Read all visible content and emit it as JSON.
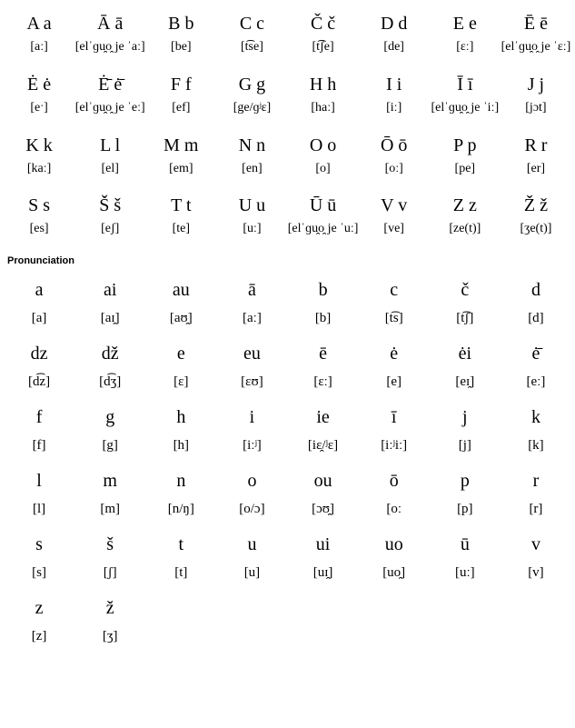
{
  "alphabet": [
    {
      "letter": "A a",
      "ipa": "[aː]"
    },
    {
      "letter": "Ā ā",
      "ipa": "[elˈɡu̯o̯ je ˈaː]"
    },
    {
      "letter": "B b",
      "ipa": "[be]"
    },
    {
      "letter": "C c",
      "ipa": "[t͡se]"
    },
    {
      "letter": "Č č",
      "ipa": "[t͡ʃe]"
    },
    {
      "letter": "D d",
      "ipa": "[de]"
    },
    {
      "letter": "E e",
      "ipa": "[ɛː]"
    },
    {
      "letter": "Ē ē",
      "ipa": "[elˈɡu̯o̯ je ˈɛː]"
    },
    {
      "letter": "Ė ė",
      "ipa": "[eˑ]"
    },
    {
      "letter": "Ė̄ ė̄",
      "ipa": "[elˈɡu̯o̯ je ˈeː]"
    },
    {
      "letter": "F f",
      "ipa": "[ef]"
    },
    {
      "letter": "G g",
      "ipa": "[ge/ɡʲɛ]"
    },
    {
      "letter": "H h",
      "ipa": "[haː]"
    },
    {
      "letter": "I i",
      "ipa": "[iː]"
    },
    {
      "letter": "Ī ī",
      "ipa": "[elˈɡu̯o̯ je ˈiː]"
    },
    {
      "letter": "J j",
      "ipa": "[jɔt]"
    },
    {
      "letter": "K k",
      "ipa": "[kaː]"
    },
    {
      "letter": "L l",
      "ipa": "[el]"
    },
    {
      "letter": "M m",
      "ipa": "[em]"
    },
    {
      "letter": "N n",
      "ipa": "[en]"
    },
    {
      "letter": "O o",
      "ipa": "[o]"
    },
    {
      "letter": "Ō ō",
      "ipa": "[oː]"
    },
    {
      "letter": "P p",
      "ipa": "[pe]"
    },
    {
      "letter": "R r",
      "ipa": "[er]"
    },
    {
      "letter": "S s",
      "ipa": "[es]"
    },
    {
      "letter": "Š š",
      "ipa": "[eʃ]"
    },
    {
      "letter": "T t",
      "ipa": "[te]"
    },
    {
      "letter": "U u",
      "ipa": "[uː]"
    },
    {
      "letter": "Ū ū",
      "ipa": "[elˈɡu̯o̯ je ˈuː]"
    },
    {
      "letter": "V v",
      "ipa": "[ve]"
    },
    {
      "letter": "Z z",
      "ipa": "[ze(t)]"
    },
    {
      "letter": "Ž ž",
      "ipa": "[ʒe(t)]"
    }
  ],
  "section_title": "Pronunciation",
  "pronunciation": [
    {
      "letter": "a",
      "ipa": "[a]"
    },
    {
      "letter": "ai",
      "ipa": "[aɪ̯]"
    },
    {
      "letter": "au",
      "ipa": "[aʊ̯]"
    },
    {
      "letter": "ā",
      "ipa": "[aː]"
    },
    {
      "letter": "b",
      "ipa": "[b]"
    },
    {
      "letter": "c",
      "ipa": "[t͡s]"
    },
    {
      "letter": "č",
      "ipa": "[t͡ʃ]"
    },
    {
      "letter": "d",
      "ipa": "[d]"
    },
    {
      "letter": "dz",
      "ipa": "[d͡z]"
    },
    {
      "letter": "dž",
      "ipa": "[d͡ʒ]"
    },
    {
      "letter": "e",
      "ipa": "[ɛ]"
    },
    {
      "letter": "eu",
      "ipa": "[ɛʊ]"
    },
    {
      "letter": "ē",
      "ipa": "[ɛː]"
    },
    {
      "letter": "ė",
      "ipa": "[e]"
    },
    {
      "letter": "ėi",
      "ipa": "[eɪ̯]"
    },
    {
      "letter": "ė̄",
      "ipa": "[eː]"
    },
    {
      "letter": "f",
      "ipa": "[f]"
    },
    {
      "letter": "g",
      "ipa": "[g]"
    },
    {
      "letter": "h",
      "ipa": "[h]"
    },
    {
      "letter": "i",
      "ipa": "[iːʲ]"
    },
    {
      "letter": "ie",
      "ipa": "[iɛ̯/ʲɛ]"
    },
    {
      "letter": "ī",
      "ipa": "[iːʲiː]"
    },
    {
      "letter": "j",
      "ipa": "[j]"
    },
    {
      "letter": "k",
      "ipa": "[k]"
    },
    {
      "letter": "l",
      "ipa": "[l]"
    },
    {
      "letter": "m",
      "ipa": "[m]"
    },
    {
      "letter": "n",
      "ipa": "[n/ŋ]"
    },
    {
      "letter": "o",
      "ipa": "[o/ɔ]"
    },
    {
      "letter": "ou",
      "ipa": "[ɔʊ̯]"
    },
    {
      "letter": "ō",
      "ipa": "[oː"
    },
    {
      "letter": "p",
      "ipa": "[p]"
    },
    {
      "letter": "r",
      "ipa": "[r]"
    },
    {
      "letter": "s",
      "ipa": "[s]"
    },
    {
      "letter": "š",
      "ipa": "[ʃ]"
    },
    {
      "letter": "t",
      "ipa": "[t]"
    },
    {
      "letter": "u",
      "ipa": "[u]"
    },
    {
      "letter": "ui",
      "ipa": "[uɪ̯]"
    },
    {
      "letter": "uo",
      "ipa": "[uo̯]"
    },
    {
      "letter": "ū",
      "ipa": "[uː]"
    },
    {
      "letter": "v",
      "ipa": "[v]"
    },
    {
      "letter": "z",
      "ipa": "[z]"
    },
    {
      "letter": "ž",
      "ipa": "[ʒ]"
    }
  ],
  "styling": {
    "columns": 8,
    "letter_fontsize_pt": 15,
    "ipa_fontsize_pt": 11,
    "section_title_fontsize_pt": 8.5,
    "font_family": "Times New Roman, serif",
    "section_title_font_family": "Verdana, sans-serif",
    "background_color": "#ffffff",
    "text_color": "#000000"
  }
}
